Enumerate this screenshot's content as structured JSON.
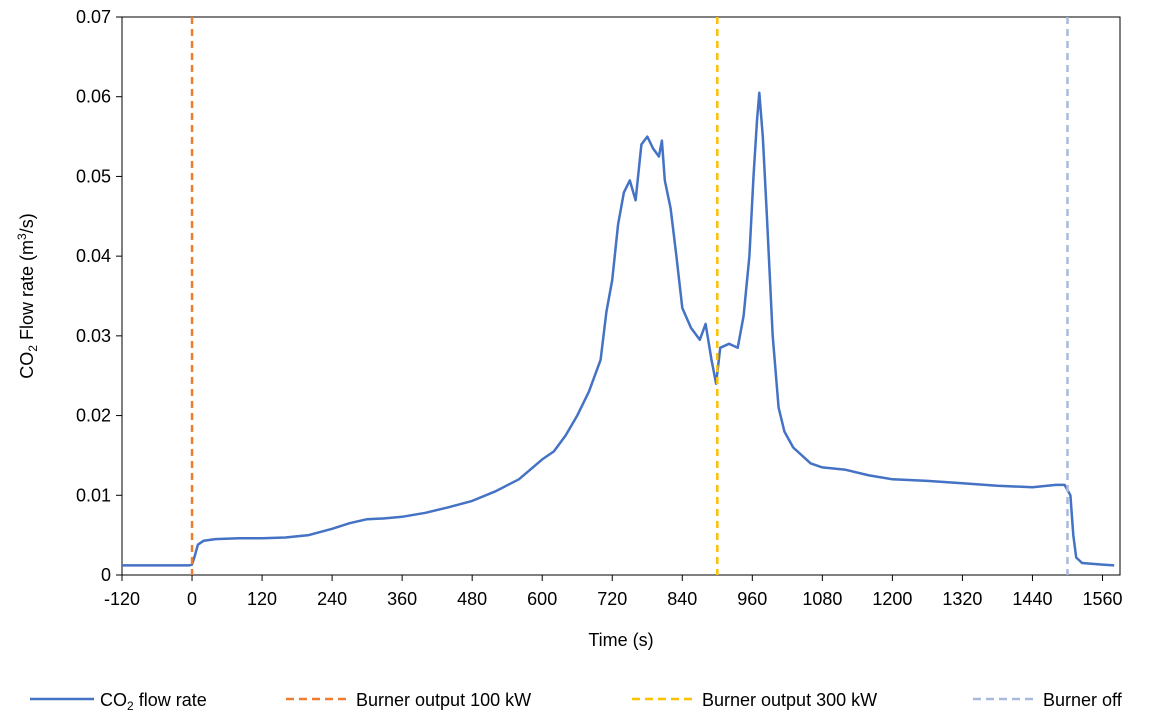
{
  "chart_data": {
    "type": "line",
    "xlabel": "Time (s)",
    "ylabel": {
      "prefix": "CO",
      "sub": "2",
      "mid": " Flow rate (m",
      "sup": "3",
      "suffix": "/s)"
    },
    "xlim": [
      -120,
      1590
    ],
    "ylim": [
      0,
      0.07
    ],
    "xticks": [
      -120,
      0,
      120,
      240,
      360,
      480,
      600,
      720,
      840,
      960,
      1080,
      1200,
      1320,
      1440,
      1560
    ],
    "yticks": [
      0,
      0.01,
      0.02,
      0.03,
      0.04,
      0.05,
      0.06,
      0.07
    ],
    "ytick_labels": [
      "0",
      "0.01",
      "0.02",
      "0.03",
      "0.04",
      "0.05",
      "0.06",
      "0.07"
    ],
    "grid": false,
    "legend_position": "bottom",
    "series": [
      {
        "name": {
          "prefix": "CO",
          "sub": "2",
          "suffix": " flow rate"
        },
        "color": "#4472c4",
        "style": "solid",
        "points": [
          [
            -120,
            0.0012
          ],
          [
            -60,
            0.0012
          ],
          [
            -5,
            0.0012
          ],
          [
            0,
            0.0013
          ],
          [
            5,
            0.0025
          ],
          [
            10,
            0.0038
          ],
          [
            20,
            0.0043
          ],
          [
            40,
            0.0045
          ],
          [
            80,
            0.0046
          ],
          [
            120,
            0.0046
          ],
          [
            160,
            0.0047
          ],
          [
            200,
            0.005
          ],
          [
            240,
            0.0058
          ],
          [
            270,
            0.0065
          ],
          [
            300,
            0.007
          ],
          [
            330,
            0.0071
          ],
          [
            360,
            0.0073
          ],
          [
            400,
            0.0078
          ],
          [
            440,
            0.0085
          ],
          [
            480,
            0.0093
          ],
          [
            520,
            0.0105
          ],
          [
            560,
            0.012
          ],
          [
            600,
            0.0145
          ],
          [
            620,
            0.0155
          ],
          [
            640,
            0.0175
          ],
          [
            660,
            0.02
          ],
          [
            680,
            0.023
          ],
          [
            700,
            0.027
          ],
          [
            710,
            0.033
          ],
          [
            720,
            0.037
          ],
          [
            730,
            0.044
          ],
          [
            740,
            0.048
          ],
          [
            750,
            0.0495
          ],
          [
            760,
            0.047
          ],
          [
            770,
            0.054
          ],
          [
            780,
            0.055
          ],
          [
            790,
            0.0535
          ],
          [
            800,
            0.0525
          ],
          [
            805,
            0.0545
          ],
          [
            810,
            0.0495
          ],
          [
            820,
            0.046
          ],
          [
            830,
            0.04
          ],
          [
            840,
            0.0335
          ],
          [
            855,
            0.031
          ],
          [
            870,
            0.0295
          ],
          [
            880,
            0.0315
          ],
          [
            890,
            0.027
          ],
          [
            898,
            0.024
          ],
          [
            905,
            0.0285
          ],
          [
            920,
            0.029
          ],
          [
            935,
            0.0285
          ],
          [
            945,
            0.0325
          ],
          [
            955,
            0.04
          ],
          [
            962,
            0.05
          ],
          [
            968,
            0.057
          ],
          [
            972,
            0.0605
          ],
          [
            978,
            0.055
          ],
          [
            985,
            0.045
          ],
          [
            995,
            0.03
          ],
          [
            1005,
            0.021
          ],
          [
            1015,
            0.018
          ],
          [
            1030,
            0.016
          ],
          [
            1060,
            0.014
          ],
          [
            1080,
            0.0135
          ],
          [
            1120,
            0.0132
          ],
          [
            1160,
            0.0125
          ],
          [
            1200,
            0.012
          ],
          [
            1260,
            0.0118
          ],
          [
            1320,
            0.0115
          ],
          [
            1380,
            0.0112
          ],
          [
            1440,
            0.011
          ],
          [
            1480,
            0.0113
          ],
          [
            1495,
            0.0113
          ],
          [
            1505,
            0.01
          ],
          [
            1510,
            0.005
          ],
          [
            1515,
            0.0022
          ],
          [
            1525,
            0.0015
          ],
          [
            1560,
            0.0013
          ],
          [
            1580,
            0.0012
          ]
        ]
      },
      {
        "name": "Burner output 100 kW",
        "color": "#ed7d31",
        "style": "dashed",
        "x": 0
      },
      {
        "name": "Burner output 300 kW",
        "color": "#ffc000",
        "style": "dashed",
        "x": 900
      },
      {
        "name": "Burner off",
        "color": "#a9b9dc",
        "style": "dashed",
        "x": 1500
      }
    ]
  }
}
